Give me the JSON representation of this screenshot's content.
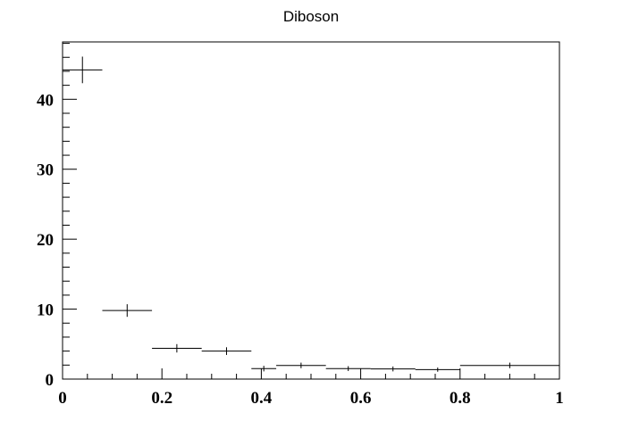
{
  "chart_data": {
    "type": "scatter",
    "title": "Diboson",
    "xlabel": "",
    "ylabel": "",
    "xlim": [
      0,
      1
    ],
    "ylim": [
      0,
      48.2
    ],
    "x_ticks": [
      {
        "value": 0,
        "label": "0"
      },
      {
        "value": 0.2,
        "label": "0.2"
      },
      {
        "value": 0.4,
        "label": "0.4"
      },
      {
        "value": 0.6,
        "label": "0.6"
      },
      {
        "value": 0.8,
        "label": "0.8"
      },
      {
        "value": 1,
        "label": "1"
      }
    ],
    "y_ticks": [
      {
        "value": 0,
        "label": "0"
      },
      {
        "value": 10,
        "label": "10"
      },
      {
        "value": 20,
        "label": "20"
      },
      {
        "value": 30,
        "label": "30"
      },
      {
        "value": 40,
        "label": "40"
      }
    ],
    "grid": false,
    "legend": "none",
    "points": [
      {
        "x": 0.04,
        "x_low": 0.0,
        "x_high": 0.08,
        "y": 44.2,
        "y_err": 1.9
      },
      {
        "x": 0.13,
        "x_low": 0.08,
        "x_high": 0.18,
        "y": 9.8,
        "y_err": 0.9
      },
      {
        "x": 0.23,
        "x_low": 0.18,
        "x_high": 0.28,
        "y": 4.4,
        "y_err": 0.6
      },
      {
        "x": 0.33,
        "x_low": 0.28,
        "x_high": 0.38,
        "y": 4.0,
        "y_err": 0.55
      },
      {
        "x": 0.405,
        "x_low": 0.38,
        "x_high": 0.43,
        "y": 1.5,
        "y_err": 0.4
      },
      {
        "x": 0.48,
        "x_low": 0.43,
        "x_high": 0.53,
        "y": 1.95,
        "y_err": 0.4
      },
      {
        "x": 0.575,
        "x_low": 0.53,
        "x_high": 0.62,
        "y": 1.5,
        "y_err": 0.35
      },
      {
        "x": 0.665,
        "x_low": 0.62,
        "x_high": 0.71,
        "y": 1.45,
        "y_err": 0.35
      },
      {
        "x": 0.755,
        "x_low": 0.71,
        "x_high": 0.8,
        "y": 1.35,
        "y_err": 0.3
      },
      {
        "x": 0.9,
        "x_low": 0.8,
        "x_high": 1.0,
        "y": 1.95,
        "y_err": 0.4
      }
    ]
  }
}
